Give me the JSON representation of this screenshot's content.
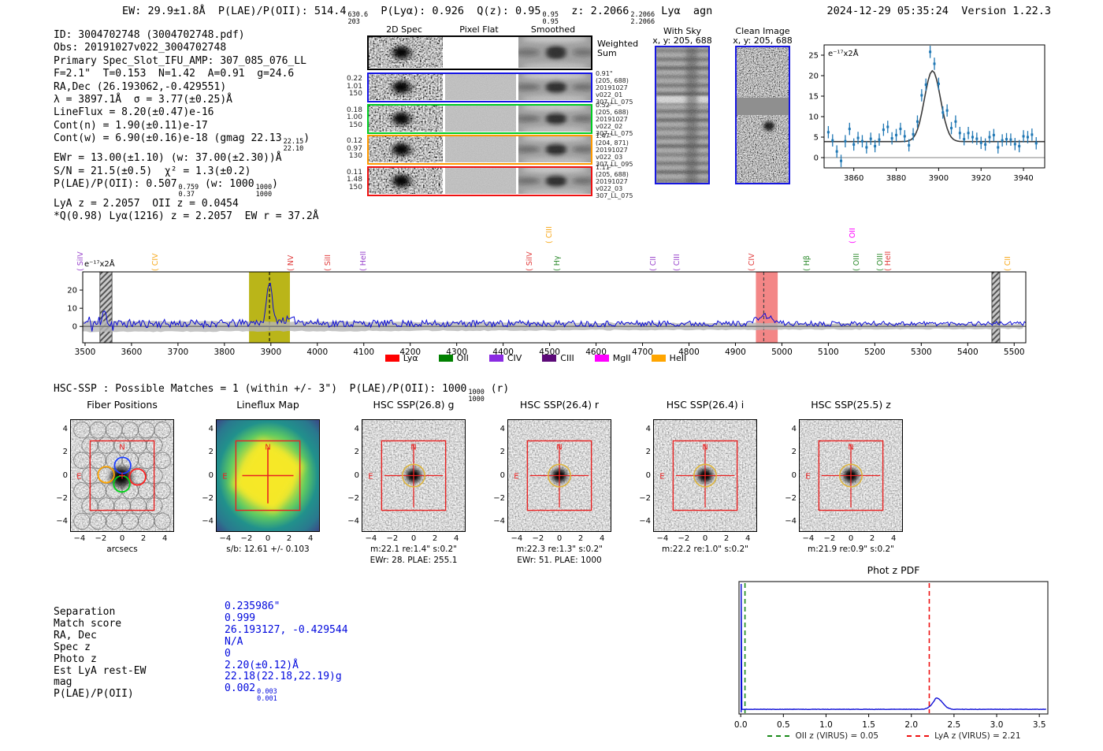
{
  "header": {
    "left": [
      {
        "t": "EW: 29.9±1.8Å  P(LAE)/P(OII): 514.4"
      },
      {
        "hi": "630.6",
        "lo": "203"
      },
      {
        "t": "  P(Lyα): 0.926  Q(z): 0.95"
      },
      {
        "hi": "0.95",
        "lo": "0.95"
      },
      {
        "t": "  z: 2.2066"
      },
      {
        "hi": "2.2066",
        "lo": "2.2066"
      },
      {
        "t": " Lyα  agn"
      }
    ],
    "timestamp": "2024-12-29 05:35:24",
    "version": "Version 1.22.3"
  },
  "info_block": {
    "lines": [
      [
        {
          "t": "ID: 3004702748 (3004702748.pdf)"
        }
      ],
      [
        {
          "t": "Obs: 20191027v022_3004702748"
        }
      ],
      [
        {
          "t": "Primary Spec_Slot_IFU_AMP: 307_085_076_LL"
        }
      ],
      [
        {
          "t": "F=2.1\"  T=0.153  N=1.42  A=0.91  g=24.6"
        }
      ],
      [
        {
          "t": "RA,Dec (26.193062,-0.429551)"
        }
      ],
      [
        {
          "t": "λ = 3897.1Å  σ = 3.77(±0.25)Å"
        }
      ],
      [
        {
          "t": "LineFlux = 8.20(±0.47)e-16"
        }
      ],
      [
        {
          "t": "Cont(n) = 1.90(±0.11)e-17"
        }
      ],
      [
        {
          "t": "Cont(w) = 6.90(±0.16)e-18 (gmag 22.13"
        },
        {
          "hi": "22.15",
          "lo": "22.10"
        },
        {
          "t": ")"
        }
      ],
      [
        {
          "t": "EWr = 13.00(±1.10) (w: 37.00(±2.30))Å"
        }
      ],
      [
        {
          "t": "S/N = 21.5(±0.5)  χ² = 1.3(±0.2)"
        }
      ],
      [
        {
          "t": "P(LAE)/P(OII): 0.507"
        },
        {
          "hi": "0.759",
          "lo": "0.37"
        },
        {
          "t": " (w: 1000"
        },
        {
          "hi": "1000",
          "lo": "1000"
        },
        {
          "t": ")"
        }
      ],
      [
        {
          "t": "LyA z = 2.2057  OII z = 0.0454"
        }
      ],
      [
        {
          "t": "*Q(0.98) Lyα(1216) z = 2.2057  EW r = 37.2Å"
        }
      ]
    ]
  },
  "spec2d": {
    "col_headers": [
      "2D Spec",
      "Pixel Flat",
      "Smoothed"
    ],
    "weighted_label": [
      "Weighted",
      "Sum"
    ],
    "rows": [
      {
        "color": "#1414e6",
        "left": [
          "0.22",
          "1.01",
          "150"
        ],
        "right": [
          "0.91\"",
          "(205, 688)",
          "20191027",
          "v022_01",
          "307_LL_075"
        ]
      },
      {
        "color": "#00cc22",
        "left": [
          "0.18",
          "1.00",
          "150"
        ],
        "right": [
          "0.52\"",
          "(205, 688)",
          "20191027",
          "v022_02",
          "307_LL_075"
        ]
      },
      {
        "color": "#ff9900",
        "left": [
          "0.12",
          "0.97",
          "130"
        ],
        "right": [
          "1.47\"",
          "(204, 871)",
          "20191027",
          "v022_03",
          "307_LL_095"
        ]
      },
      {
        "color": "#ee1111",
        "left": [
          "0.11",
          "1.48",
          "150"
        ],
        "right": [
          "1.11\"",
          "(205, 688)",
          "20191027",
          "v022_03",
          "307_LL_075"
        ]
      }
    ]
  },
  "sky_panels": [
    {
      "key": "withsky",
      "title": "With Sky",
      "coords": "x, y: 205, 688"
    },
    {
      "key": "clean",
      "title": "Clean Image",
      "coords": "x, y: 205, 688"
    }
  ],
  "hsc_header": [
    {
      "t": "HSC-SSP : Possible Matches = 1 (within +/- 3\")  P(LAE)/P(OII): 1000"
    },
    {
      "hi": "1000",
      "lo": "1000"
    },
    {
      "t": " (r)"
    }
  ],
  "cutouts": {
    "panels": [
      {
        "key": "fiber",
        "title": "Fiber Positions",
        "caption1": "arcsecs",
        "caption2": ""
      },
      {
        "key": "lineflux",
        "title": "Lineflux Map",
        "caption1": "s/b: 12.61 +/- 0.103",
        "caption2": ""
      },
      {
        "key": "g",
        "title": "HSC SSP(26.8) g",
        "caption1": "m:22.1 re:1.4\" s:0.2\"",
        "caption2": "EWr: 28. PLAE: 255.1"
      },
      {
        "key": "r",
        "title": "HSC SSP(26.4) r",
        "caption1": "m:22.3 re:1.3\" s:0.2\"",
        "caption2": "EWr: 51. PLAE: 1000"
      },
      {
        "key": "i",
        "title": "HSC SSP(26.4) i",
        "caption1": "m:22.2 re:1.0\" s:0.2\"",
        "caption2": ""
      },
      {
        "key": "z",
        "title": "HSC SSP(25.5) z",
        "caption1": "m:21.9 re:0.9\" s:0.2\"",
        "caption2": ""
      }
    ],
    "xticks": [
      -4,
      -2,
      0,
      2,
      4
    ],
    "yticks": [
      4,
      2,
      0,
      -2,
      -4
    ],
    "compass_n": "N",
    "compass_e": "E"
  },
  "match_table": {
    "labels": [
      "Separation",
      "Match score",
      "RA, Dec",
      "Spec z",
      "Photo z",
      "Est LyA rest-EW",
      "mag",
      "P(LAE)/P(OII)"
    ],
    "values": [
      [
        {
          "t": "0.235986\""
        }
      ],
      [
        {
          "t": "0.999"
        }
      ],
      [
        {
          "t": "26.193127, -0.429544"
        }
      ],
      [
        {
          "t": "N/A"
        }
      ],
      [
        {
          "t": "0"
        }
      ],
      [
        {
          "t": "2.20(±0.12)Å"
        }
      ],
      [
        {
          "t": "22.18(22.18,22.19)g"
        }
      ],
      [
        {
          "t": "0.002"
        },
        {
          "hi": "0.003",
          "lo": "0.001"
        }
      ]
    ]
  },
  "chart_data": {
    "line_fit_inset": {
      "type": "scatter",
      "unit_label": "e⁻¹⁷x2Å",
      "xlim": [
        3846,
        3950
      ],
      "ylim": [
        -2.5,
        27.5
      ],
      "xticks": [
        3860,
        3880,
        3900,
        3920,
        3940
      ],
      "yticks": [
        0,
        5,
        10,
        15,
        20,
        25
      ],
      "fit": {
        "center": 3897.1,
        "sigma": 3.77,
        "amplitude": 17.3,
        "baseline": 3.9
      },
      "points": {
        "x": [
          3848,
          3850,
          3852,
          3854,
          3856,
          3858,
          3860,
          3862,
          3864,
          3866,
          3868,
          3870,
          3872,
          3874,
          3876,
          3878,
          3880,
          3882,
          3884,
          3886,
          3888,
          3890,
          3892,
          3894,
          3896,
          3898,
          3900,
          3902,
          3904,
          3906,
          3908,
          3910,
          3912,
          3914,
          3916,
          3918,
          3920,
          3922,
          3924,
          3926,
          3928,
          3930,
          3932,
          3934,
          3936,
          3938,
          3940,
          3942,
          3944,
          3946
        ],
        "y": [
          6.2,
          4.2,
          1.5,
          -0.8,
          4.0,
          7.0,
          3.2,
          4.8,
          4.0,
          2.5,
          4.6,
          2.8,
          4.4,
          6.8,
          7.5,
          4.7,
          5.5,
          7.0,
          5.2,
          3.0,
          5.7,
          8.8,
          15.2,
          17.8,
          25.8,
          22.9,
          18.0,
          11.0,
          11.5,
          7.2,
          8.8,
          6.0,
          4.5,
          6.0,
          5.0,
          4.6,
          3.6,
          3.2,
          5.0,
          5.5,
          2.5,
          4.2,
          4.5,
          4.4,
          3.3,
          2.8,
          5.2,
          5.0,
          5.6,
          3.5
        ],
        "yerr": 1.5
      },
      "marker_color": "#1f77b4",
      "fit_color": "#3a3a3a"
    },
    "full_spectrum": {
      "type": "line",
      "unit_label": "e⁻¹⁷x2Å",
      "xlim": [
        3495,
        5525
      ],
      "ylim": [
        -9,
        30
      ],
      "xticks": [
        3500,
        3600,
        3700,
        3800,
        3900,
        4000,
        4100,
        4200,
        4300,
        4400,
        4500,
        4600,
        4700,
        4800,
        4900,
        5000,
        5100,
        5200,
        5300,
        5400,
        5500
      ],
      "yticks": [
        0,
        10,
        20
      ],
      "baseline": 1.6,
      "noise_amp": [
        2.4,
        1.1
      ],
      "error_band": [
        3.0,
        1.3
      ],
      "main_line": {
        "center": 3897,
        "sigma": 5.0,
        "height": 22.5
      },
      "continuum_hump": {
        "center": 3925,
        "sigma": 40,
        "height": 2.0
      },
      "secondary_bump": {
        "center": 4962,
        "sigma": 16,
        "height": 4.2
      },
      "left_spike": {
        "center": 3543,
        "sigma": 3,
        "height": 11
      },
      "line_color": "#0b0bd6",
      "bands": [
        {
          "style": "hatch",
          "x0": 3532,
          "x1": 3558
        },
        {
          "style": "solid",
          "color": "#b3ad00",
          "alpha": 0.9,
          "x0": 3853,
          "x1": 3941,
          "marker": 3897,
          "marker_color": "#111111"
        },
        {
          "style": "solid",
          "color": "#f27979",
          "alpha": 0.9,
          "x0": 4944,
          "x1": 4991,
          "marker": 4961,
          "marker_color": "#444444"
        },
        {
          "style": "hatch",
          "x0": 5452,
          "x1": 5469
        }
      ],
      "line_labels": [
        {
          "name": "SiIV",
          "color": "#9944cc",
          "x": 3517
        },
        {
          "name": "CIV",
          "color": "#f7a81a",
          "x": 3678
        },
        {
          "name": "NV",
          "color": "#e03a3a",
          "x": 3970
        },
        {
          "name": "SiII",
          "color": "#e03a3a",
          "x": 4049
        },
        {
          "name": "HeII",
          "color": "#9944cc",
          "x": 4126
        },
        {
          "name": "SiIV",
          "color": "#e03a3a",
          "x": 4484
        },
        {
          "name": "CIII",
          "color": "#f7a81a",
          "x": 4526,
          "raised": true
        },
        {
          "name": "Hγ",
          "color": "#2e8b2e",
          "x": 4543
        },
        {
          "name": "CII",
          "color": "#9944cc",
          "x": 4750
        },
        {
          "name": "CIII",
          "color": "#9944cc",
          "x": 4801
        },
        {
          "name": "CIV",
          "color": "#e03a3a",
          "x": 4962
        },
        {
          "name": "Hβ",
          "color": "#2e8b2e",
          "x": 5081
        },
        {
          "name": "OII",
          "color": "#ff00ff",
          "x": 5179,
          "raised": true
        },
        {
          "name": "OIII",
          "color": "#2e8b2e",
          "x": 5188
        },
        {
          "name": "OIII",
          "color": "#2e8b2e",
          "x": 5239
        },
        {
          "name": "HeII",
          "color": "#e03a3a",
          "x": 5256
        },
        {
          "name": "CII",
          "color": "#f7a81a",
          "x": 5513
        }
      ],
      "legend": [
        {
          "label": "Lyα",
          "color": "#ff0000"
        },
        {
          "label": "OII",
          "color": "#008000"
        },
        {
          "label": "CIV",
          "color": "#8a2be2"
        },
        {
          "label": "CIII",
          "color": "#5c0a78"
        },
        {
          "label": "MgII",
          "color": "#ff00ff"
        },
        {
          "label": "HeII",
          "color": "#ffa500"
        }
      ]
    },
    "phot_z_pdf": {
      "type": "line",
      "title": "Phot z PDF",
      "xlim": [
        -0.02,
        3.6
      ],
      "xticks": [
        "0.0",
        "0.5",
        "1.0",
        "1.5",
        "2.0",
        "2.5",
        "3.0",
        "3.5"
      ],
      "flat_level": 0.035,
      "zero_spike_x": 0.005,
      "bump": {
        "center": 2.31,
        "sigma": 0.06,
        "height": 0.078
      },
      "curve_color": "#0b0bd6",
      "markers": [
        {
          "x": 0.05,
          "color": "#1a8a1a",
          "label": "OII z (VIRUS) = 0.05"
        },
        {
          "x": 2.21,
          "color": "#ee1111",
          "label": "LyA z (VIRUS) = 2.21"
        }
      ]
    }
  }
}
